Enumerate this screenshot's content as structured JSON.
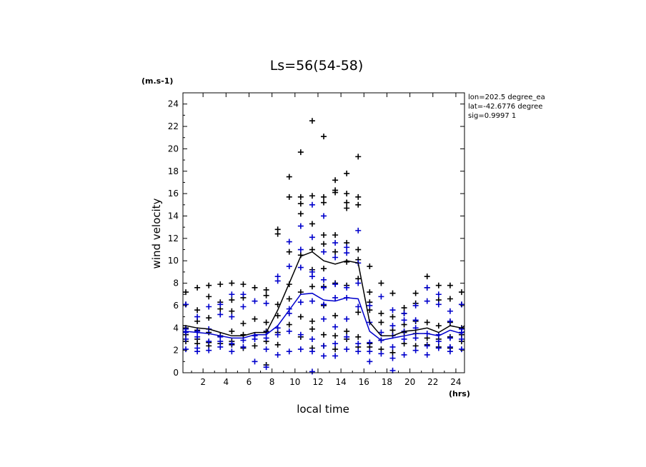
{
  "chart_data": {
    "type": "scatter",
    "title": "Ls=56(54-58)",
    "xlabel": "local time",
    "ylabel": "wind velocity",
    "x_unit": "(hrs)",
    "y_unit": "(m.s-1)",
    "xlim": [
      0.25,
      24.75
    ],
    "ylim": [
      0,
      25
    ],
    "xticks": [
      2,
      4,
      6,
      8,
      10,
      12,
      14,
      16,
      18,
      20,
      22,
      24
    ],
    "yticks": [
      0,
      2,
      4,
      6,
      8,
      10,
      12,
      14,
      16,
      18,
      20,
      22,
      24
    ],
    "info": [
      "lon=202.5 degree_ea",
      "lat=-42.6776 degree",
      "sig=0.9997 1"
    ],
    "series": [
      {
        "color": "#000000",
        "type": "scatter",
        "points": [
          [
            0.5,
            7.2
          ],
          [
            0.5,
            6.1
          ],
          [
            0.5,
            4.0
          ],
          [
            0.5,
            3.4
          ],
          [
            0.5,
            2.8
          ],
          [
            1.5,
            7.6
          ],
          [
            1.5,
            5.6
          ],
          [
            1.5,
            4.6
          ],
          [
            1.5,
            3.8
          ],
          [
            1.5,
            3.0
          ],
          [
            1.5,
            2.6
          ],
          [
            2.5,
            7.8
          ],
          [
            2.5,
            6.8
          ],
          [
            2.5,
            4.9
          ],
          [
            2.5,
            3.6
          ],
          [
            2.5,
            2.7
          ],
          [
            2.5,
            2.4
          ],
          [
            3.5,
            7.9
          ],
          [
            3.5,
            6.3
          ],
          [
            3.5,
            5.7
          ],
          [
            3.5,
            3.3
          ],
          [
            3.5,
            2.6
          ],
          [
            4.5,
            8.0
          ],
          [
            4.5,
            6.5
          ],
          [
            4.5,
            5.5
          ],
          [
            4.5,
            3.7
          ],
          [
            4.5,
            2.8
          ],
          [
            4.5,
            2.5
          ],
          [
            5.5,
            7.9
          ],
          [
            5.5,
            6.7
          ],
          [
            5.5,
            4.4
          ],
          [
            5.5,
            3.4
          ],
          [
            5.5,
            2.2
          ],
          [
            6.5,
            7.6
          ],
          [
            6.5,
            4.8
          ],
          [
            6.5,
            3.3
          ],
          [
            6.5,
            2.4
          ],
          [
            7.5,
            7.4
          ],
          [
            7.5,
            6.9
          ],
          [
            7.5,
            4.5
          ],
          [
            7.5,
            3.7
          ],
          [
            7.5,
            2.8
          ],
          [
            7.5,
            0.7
          ],
          [
            8.5,
            12.8
          ],
          [
            8.5,
            12.4
          ],
          [
            8.5,
            6.1
          ],
          [
            8.5,
            5.1
          ],
          [
            8.5,
            3.6
          ],
          [
            8.5,
            2.5
          ],
          [
            9.5,
            17.5
          ],
          [
            9.5,
            15.7
          ],
          [
            9.5,
            10.8
          ],
          [
            9.5,
            7.9
          ],
          [
            9.5,
            6.6
          ],
          [
            9.5,
            4.3
          ],
          [
            10.5,
            19.7
          ],
          [
            10.5,
            15.7
          ],
          [
            10.5,
            15.1
          ],
          [
            10.5,
            14.2
          ],
          [
            10.5,
            10.5
          ],
          [
            10.5,
            7.2
          ],
          [
            10.5,
            5.0
          ],
          [
            10.5,
            3.2
          ],
          [
            11.5,
            22.5
          ],
          [
            11.5,
            15.8
          ],
          [
            11.5,
            13.3
          ],
          [
            11.5,
            11.0
          ],
          [
            11.5,
            9.2
          ],
          [
            11.5,
            7.7
          ],
          [
            11.5,
            4.6
          ],
          [
            11.5,
            3.9
          ],
          [
            11.5,
            2.2
          ],
          [
            12.5,
            21.1
          ],
          [
            12.5,
            15.7
          ],
          [
            12.5,
            15.2
          ],
          [
            12.5,
            12.3
          ],
          [
            12.5,
            11.5
          ],
          [
            12.5,
            9.3
          ],
          [
            12.5,
            7.7
          ],
          [
            12.5,
            6.0
          ],
          [
            12.5,
            3.4
          ],
          [
            12.5,
            2.4
          ],
          [
            13.5,
            17.2
          ],
          [
            13.5,
            16.3
          ],
          [
            13.5,
            16.1
          ],
          [
            13.5,
            12.3
          ],
          [
            13.5,
            10.8
          ],
          [
            13.5,
            8.0
          ],
          [
            13.5,
            5.1
          ],
          [
            13.5,
            3.3
          ],
          [
            13.5,
            2.1
          ],
          [
            14.5,
            17.8
          ],
          [
            14.5,
            16.0
          ],
          [
            14.5,
            15.2
          ],
          [
            14.5,
            14.7
          ],
          [
            14.5,
            11.6
          ],
          [
            14.5,
            9.9
          ],
          [
            14.5,
            7.8
          ],
          [
            14.5,
            3.7
          ],
          [
            14.5,
            3.0
          ],
          [
            15.5,
            19.3
          ],
          [
            15.5,
            15.7
          ],
          [
            15.5,
            15.0
          ],
          [
            15.5,
            11.0
          ],
          [
            15.5,
            10.1
          ],
          [
            15.5,
            8.4
          ],
          [
            15.5,
            5.4
          ],
          [
            15.5,
            3.2
          ],
          [
            15.5,
            2.3
          ],
          [
            16.5,
            9.5
          ],
          [
            16.5,
            7.2
          ],
          [
            16.5,
            6.3
          ],
          [
            16.5,
            5.6
          ],
          [
            16.5,
            2.6
          ],
          [
            16.5,
            2.3
          ],
          [
            17.5,
            8.0
          ],
          [
            17.5,
            5.3
          ],
          [
            17.5,
            4.5
          ],
          [
            17.5,
            2.9
          ],
          [
            17.5,
            2.1
          ],
          [
            18.5,
            7.1
          ],
          [
            18.5,
            5.0
          ],
          [
            18.5,
            3.8
          ],
          [
            18.5,
            3.3
          ],
          [
            18.5,
            1.8
          ],
          [
            19.5,
            5.8
          ],
          [
            19.5,
            5.3
          ],
          [
            19.5,
            4.3
          ],
          [
            19.5,
            3.6
          ],
          [
            19.5,
            2.6
          ],
          [
            20.5,
            7.1
          ],
          [
            20.5,
            6.2
          ],
          [
            20.5,
            4.6
          ],
          [
            20.5,
            3.5
          ],
          [
            20.5,
            2.4
          ],
          [
            21.5,
            8.6
          ],
          [
            21.5,
            7.6
          ],
          [
            21.5,
            4.5
          ],
          [
            21.5,
            3.1
          ],
          [
            21.5,
            2.5
          ],
          [
            22.5,
            7.8
          ],
          [
            22.5,
            6.5
          ],
          [
            22.5,
            4.2
          ],
          [
            22.5,
            3.0
          ],
          [
            22.5,
            2.3
          ],
          [
            23.5,
            7.8
          ],
          [
            23.5,
            6.6
          ],
          [
            23.5,
            4.5
          ],
          [
            23.5,
            3.2
          ],
          [
            23.5,
            2.2
          ],
          [
            24.5,
            7.2
          ],
          [
            24.5,
            6.1
          ],
          [
            24.5,
            4.0
          ],
          [
            24.5,
            3.4
          ],
          [
            24.5,
            2.8
          ]
        ]
      },
      {
        "color": "#0000cc",
        "type": "scatter",
        "points": [
          [
            0.5,
            6.1
          ],
          [
            0.5,
            3.9
          ],
          [
            0.5,
            3.6
          ],
          [
            0.5,
            3.0
          ],
          [
            0.5,
            2.1
          ],
          [
            1.5,
            5.0
          ],
          [
            1.5,
            3.7
          ],
          [
            1.5,
            3.2
          ],
          [
            1.5,
            2.2
          ],
          [
            1.5,
            1.9
          ],
          [
            2.5,
            5.9
          ],
          [
            2.5,
            3.9
          ],
          [
            2.5,
            2.8
          ],
          [
            2.5,
            2.0
          ],
          [
            3.5,
            6.1
          ],
          [
            3.5,
            5.2
          ],
          [
            3.5,
            3.2
          ],
          [
            3.5,
            2.8
          ],
          [
            3.5,
            2.3
          ],
          [
            4.5,
            7.0
          ],
          [
            4.5,
            5.0
          ],
          [
            4.5,
            2.6
          ],
          [
            4.5,
            1.9
          ],
          [
            5.5,
            7.0
          ],
          [
            5.5,
            5.9
          ],
          [
            5.5,
            2.9
          ],
          [
            5.5,
            2.3
          ],
          [
            6.5,
            6.4
          ],
          [
            6.5,
            3.3
          ],
          [
            6.5,
            3.0
          ],
          [
            6.5,
            1.0
          ],
          [
            7.5,
            6.2
          ],
          [
            7.5,
            3.6
          ],
          [
            7.5,
            3.1
          ],
          [
            7.5,
            2.1
          ],
          [
            7.5,
            0.5
          ],
          [
            8.5,
            8.6
          ],
          [
            8.5,
            8.2
          ],
          [
            8.5,
            4.0
          ],
          [
            8.5,
            3.4
          ],
          [
            8.5,
            1.6
          ],
          [
            9.5,
            11.7
          ],
          [
            9.5,
            9.5
          ],
          [
            9.5,
            5.7
          ],
          [
            9.5,
            5.3
          ],
          [
            9.5,
            3.7
          ],
          [
            9.5,
            1.9
          ],
          [
            10.5,
            13.1
          ],
          [
            10.5,
            11.0
          ],
          [
            10.5,
            9.4
          ],
          [
            10.5,
            6.3
          ],
          [
            10.5,
            3.4
          ],
          [
            10.5,
            2.1
          ],
          [
            11.5,
            15.0
          ],
          [
            11.5,
            12.1
          ],
          [
            11.5,
            9.0
          ],
          [
            11.5,
            8.6
          ],
          [
            11.5,
            6.4
          ],
          [
            11.5,
            3.0
          ],
          [
            11.5,
            1.9
          ],
          [
            11.5,
            0.1
          ],
          [
            12.5,
            14.0
          ],
          [
            12.5,
            10.8
          ],
          [
            12.5,
            8.3
          ],
          [
            12.5,
            7.6
          ],
          [
            12.5,
            6.1
          ],
          [
            12.5,
            4.8
          ],
          [
            12.5,
            2.4
          ],
          [
            12.5,
            1.5
          ],
          [
            13.5,
            11.6
          ],
          [
            13.5,
            10.3
          ],
          [
            13.5,
            7.9
          ],
          [
            13.5,
            6.7
          ],
          [
            13.5,
            4.1
          ],
          [
            13.5,
            2.6
          ],
          [
            13.5,
            1.5
          ],
          [
            14.5,
            11.2
          ],
          [
            14.5,
            10.7
          ],
          [
            14.5,
            7.6
          ],
          [
            14.5,
            6.7
          ],
          [
            14.5,
            4.8
          ],
          [
            14.5,
            3.2
          ],
          [
            14.5,
            2.1
          ],
          [
            15.5,
            12.7
          ],
          [
            15.5,
            9.8
          ],
          [
            15.5,
            8.0
          ],
          [
            15.5,
            5.9
          ],
          [
            15.5,
            2.6
          ],
          [
            15.5,
            1.9
          ],
          [
            16.5,
            6.0
          ],
          [
            16.5,
            4.5
          ],
          [
            16.5,
            2.7
          ],
          [
            16.5,
            1.9
          ],
          [
            16.5,
            1.0
          ],
          [
            17.5,
            6.8
          ],
          [
            17.5,
            3.6
          ],
          [
            17.5,
            2.9
          ],
          [
            17.5,
            1.7
          ],
          [
            18.5,
            5.6
          ],
          [
            18.5,
            4.2
          ],
          [
            18.5,
            3.3
          ],
          [
            18.5,
            2.3
          ],
          [
            18.5,
            1.3
          ],
          [
            18.5,
            0.2
          ],
          [
            19.5,
            5.3
          ],
          [
            19.5,
            4.7
          ],
          [
            19.5,
            3.7
          ],
          [
            19.5,
            3.0
          ],
          [
            19.5,
            1.6
          ],
          [
            20.5,
            6.0
          ],
          [
            20.5,
            4.7
          ],
          [
            20.5,
            4.0
          ],
          [
            20.5,
            3.1
          ],
          [
            20.5,
            2.0
          ],
          [
            21.5,
            7.6
          ],
          [
            21.5,
            6.4
          ],
          [
            21.5,
            3.5
          ],
          [
            21.5,
            2.4
          ],
          [
            21.5,
            1.6
          ],
          [
            22.5,
            7.0
          ],
          [
            22.5,
            6.1
          ],
          [
            22.5,
            3.4
          ],
          [
            22.5,
            2.8
          ],
          [
            22.5,
            2.2
          ],
          [
            23.5,
            5.5
          ],
          [
            23.5,
            4.6
          ],
          [
            23.5,
            3.1
          ],
          [
            23.5,
            2.3
          ],
          [
            23.5,
            1.9
          ],
          [
            24.5,
            6.1
          ],
          [
            24.5,
            3.9
          ],
          [
            24.5,
            3.6
          ],
          [
            24.5,
            3.0
          ],
          [
            24.5,
            2.1
          ]
        ]
      },
      {
        "color": "#000000",
        "type": "line",
        "x": [
          0.25,
          0.5,
          1.5,
          2.5,
          3.5,
          4.5,
          5.5,
          6.5,
          7.5,
          8.5,
          9.5,
          10.5,
          11.5,
          12.5,
          13.5,
          14.5,
          15.5,
          16.5,
          17.5,
          18.5,
          19.5,
          20.5,
          21.5,
          22.5,
          23.5,
          24.5,
          24.75
        ],
        "y": [
          4.2,
          4.2,
          4.0,
          3.9,
          3.6,
          3.3,
          3.3,
          3.6,
          3.6,
          5.6,
          8.0,
          10.4,
          10.8,
          10.0,
          9.7,
          10.0,
          9.8,
          4.5,
          3.3,
          3.3,
          3.7,
          3.8,
          4.0,
          3.6,
          4.2,
          4.0,
          4.2
        ]
      },
      {
        "color": "#0000cc",
        "type": "line",
        "x": [
          0.25,
          0.5,
          1.5,
          2.5,
          3.5,
          4.5,
          5.5,
          6.5,
          7.5,
          8.5,
          9.5,
          10.5,
          11.5,
          12.5,
          13.5,
          14.5,
          15.5,
          16.5,
          17.5,
          18.5,
          19.5,
          20.5,
          21.5,
          22.5,
          23.5,
          24.5,
          24.75
        ],
        "y": [
          3.7,
          3.7,
          3.6,
          3.5,
          3.3,
          3.1,
          3.1,
          3.4,
          3.4,
          4.2,
          5.6,
          7.0,
          7.1,
          6.5,
          6.4,
          6.7,
          6.6,
          3.7,
          2.9,
          3.1,
          3.3,
          3.5,
          3.5,
          3.3,
          3.8,
          3.5,
          3.7
        ]
      }
    ]
  }
}
